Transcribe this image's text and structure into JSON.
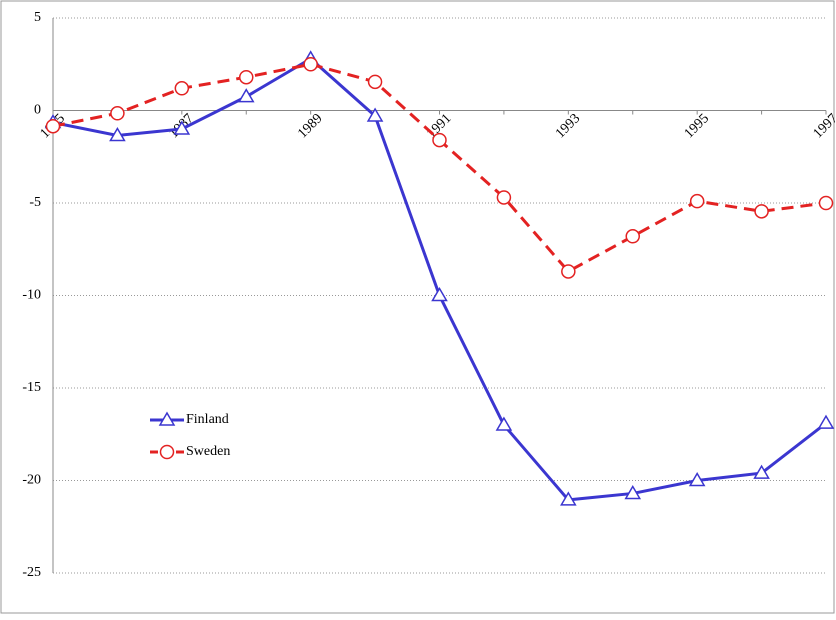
{
  "chart_data": {
    "type": "line",
    "categories": [
      "1985",
      null,
      "1987",
      null,
      "1989",
      null,
      "1991",
      null,
      "1993",
      null,
      "1995",
      null,
      "1997"
    ],
    "series": [
      {
        "name": "Finland",
        "color": "#3b36d0",
        "marker": "triangle",
        "linestyle": "solid",
        "values": [
          -0.65,
          -1.35,
          -1.0,
          0.75,
          2.8,
          -0.3,
          -10.0,
          -17.0,
          -21.05,
          -20.7,
          -20.0,
          -19.6,
          -16.9
        ]
      },
      {
        "name": "Sweden",
        "color": "#e32222",
        "marker": "circle",
        "linestyle": "dashed",
        "values": [
          -0.85,
          -0.15,
          1.2,
          1.8,
          2.5,
          1.55,
          -1.6,
          -4.7,
          -8.7,
          -6.8,
          -4.9,
          -5.45,
          -5.0
        ]
      }
    ],
    "ylim": [
      -25,
      5
    ],
    "yticks": [
      5,
      0,
      -5,
      -10,
      -15,
      -20,
      -25
    ],
    "grid": true
  }
}
